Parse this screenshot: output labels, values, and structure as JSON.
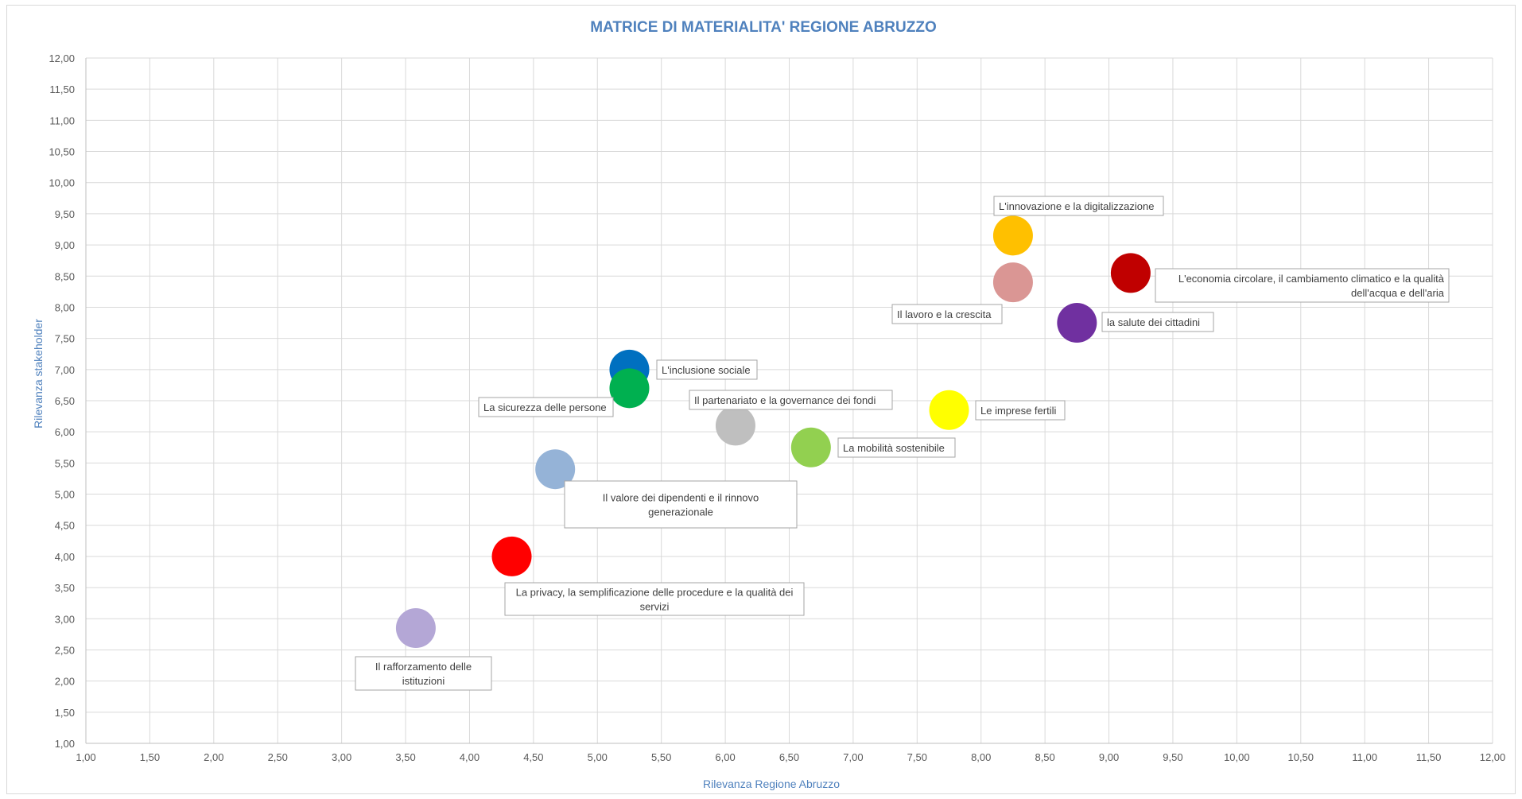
{
  "chart_data": {
    "type": "scatter",
    "title": "MATRICE DI MATERIALITA' REGIONE ABRUZZO",
    "xlabel": "Rilevanza  Regione Abruzzo",
    "ylabel": "Rilevanza stakeholder",
    "xlim": [
      1,
      12
    ],
    "ylim": [
      1,
      12
    ],
    "x_ticks": [
      "1,00",
      "1,50",
      "2,00",
      "2,50",
      "3,00",
      "3,50",
      "4,00",
      "4,50",
      "5,00",
      "5,50",
      "6,00",
      "6,50",
      "7,00",
      "7,50",
      "8,00",
      "8,50",
      "9,00",
      "9,50",
      "10,00",
      "10,50",
      "11,00",
      "11,50",
      "12,00"
    ],
    "y_ticks": [
      "1,00",
      "1,50",
      "2,00",
      "2,50",
      "3,00",
      "3,50",
      "4,00",
      "4,50",
      "5,00",
      "5,50",
      "6,00",
      "6,50",
      "7,00",
      "7,50",
      "8,00",
      "8,50",
      "9,00",
      "9,50",
      "10,00",
      "10,50",
      "11,00",
      "11,50",
      "12,00"
    ],
    "grid": true,
    "points": [
      {
        "label": [
          "L'innovazione e la digitalizzazione"
        ],
        "x": 8.25,
        "y": 9.15,
        "color": "#ffc000"
      },
      {
        "label": [
          "L'economia circolare, il cambiamento climatico e la qualità",
          "dell'acqua e dell'aria"
        ],
        "x": 9.17,
        "y": 8.55,
        "color": "#c00000"
      },
      {
        "label": [
          "Il lavoro e la crescita"
        ],
        "x": 8.25,
        "y": 8.4,
        "color": "#da9694"
      },
      {
        "label": [
          "la salute dei cittadini"
        ],
        "x": 8.75,
        "y": 7.75,
        "color": "#7030a0"
      },
      {
        "label": [
          "L'inclusione sociale"
        ],
        "x": 5.25,
        "y": 7.0,
        "color": "#0070c0"
      },
      {
        "label": [
          "La sicurezza delle persone"
        ],
        "x": 5.25,
        "y": 6.7,
        "color": "#00b050"
      },
      {
        "label": [
          "Il partenariato e la governance dei fondi"
        ],
        "x": 6.08,
        "y": 6.1,
        "color": "#bfbfbf"
      },
      {
        "label": [
          "Le imprese fertili"
        ],
        "x": 7.75,
        "y": 6.35,
        "color": "#ffff00"
      },
      {
        "label": [
          "La mobilità sostenibile"
        ],
        "x": 6.67,
        "y": 5.75,
        "color": "#92d050"
      },
      {
        "label": [
          "Il valore dei dipendenti e il rinnovo",
          "generazionale"
        ],
        "x": 4.67,
        "y": 5.4,
        "color": "#95b3d7"
      },
      {
        "label": [
          "La privacy, la semplificazione delle  procedure e la qualità dei",
          "servizi"
        ],
        "x": 4.33,
        "y": 4.0,
        "color": "#ff0000"
      },
      {
        "label": [
          "Il rafforzamento delle",
          "istituzioni"
        ],
        "x": 3.58,
        "y": 2.85,
        "color": "#b4a7d6"
      }
    ]
  }
}
